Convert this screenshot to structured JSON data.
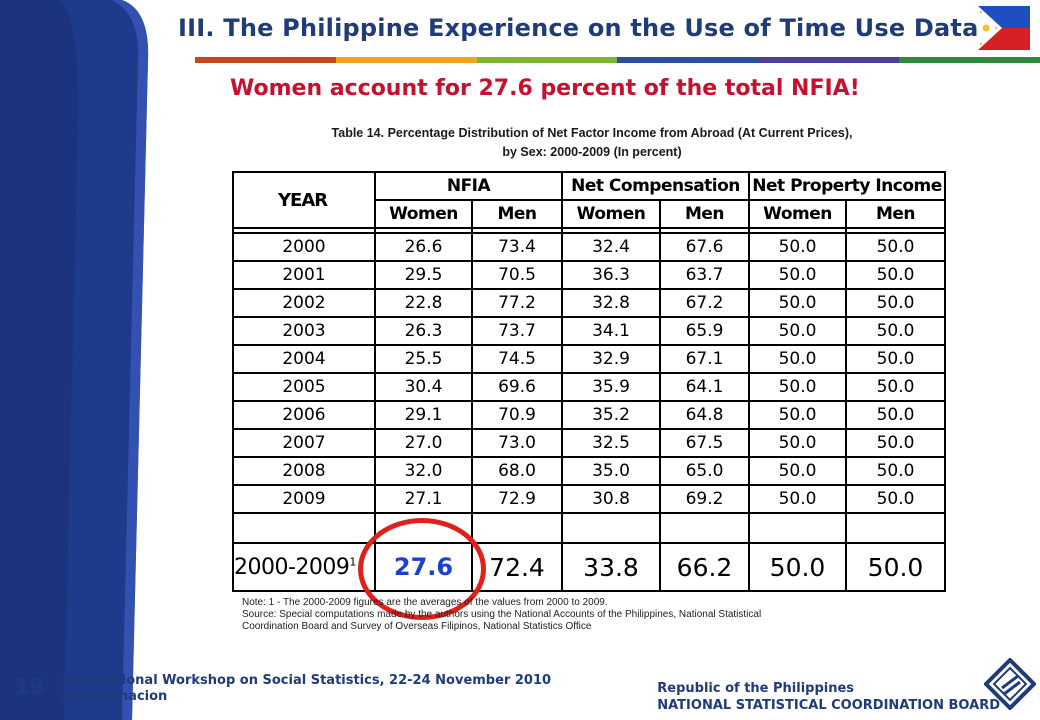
{
  "header": {
    "title": "III. The Philippine Experience on the Use of Time Use Data",
    "flag": "philippine-flag-icon",
    "rule_colors": [
      "#c5481a",
      "#f2a21b",
      "#7ab534",
      "#2b4f9e",
      "#4a3f9b",
      "#2f8a3c"
    ]
  },
  "subtitle": "Women account for 27.6 percent of the total NFIA!",
  "caption": {
    "line1": "Table 14. Percentage Distribution  of Net Factor Income from Abroad (At Current Prices),",
    "line2": "by Sex: 2000-2009 (In percent)"
  },
  "table": {
    "year_header": "YEAR",
    "groups": [
      "NFIA",
      "Net Compensation",
      "Net Property Income"
    ],
    "sub_women": "Women",
    "sub_men": "Men",
    "rows": [
      [
        "2000",
        "26.6",
        "73.4",
        "32.4",
        "67.6",
        "50.0",
        "50.0"
      ],
      [
        "2001",
        "29.5",
        "70.5",
        "36.3",
        "63.7",
        "50.0",
        "50.0"
      ],
      [
        "2002",
        "22.8",
        "77.2",
        "32.8",
        "67.2",
        "50.0",
        "50.0"
      ],
      [
        "2003",
        "26.3",
        "73.7",
        "34.1",
        "65.9",
        "50.0",
        "50.0"
      ],
      [
        "2004",
        "25.5",
        "74.5",
        "32.9",
        "67.1",
        "50.0",
        "50.0"
      ],
      [
        "2005",
        "30.4",
        "69.6",
        "35.9",
        "64.1",
        "50.0",
        "50.0"
      ],
      [
        "2006",
        "29.1",
        "70.9",
        "35.2",
        "64.8",
        "50.0",
        "50.0"
      ],
      [
        "2007",
        "27.0",
        "73.0",
        "32.5",
        "67.5",
        "50.0",
        "50.0"
      ],
      [
        "2008",
        "32.0",
        "68.0",
        "35.0",
        "65.0",
        "50.0",
        "50.0"
      ],
      [
        "2009",
        "27.1",
        "72.9",
        "30.8",
        "69.2",
        "50.0",
        "50.0"
      ]
    ],
    "average": {
      "year": "2000-2009",
      "note_mark": "1",
      "values": [
        "27.6",
        "72.4",
        "33.8",
        "66.2",
        "50.0",
        "50.0"
      ]
    }
  },
  "note": {
    "line1": "Note:  1 - The 2000-2009 figures are the averages of the values from 2000 to 2009.",
    "line2": "Source:  Special computations made by the authors using the National Accounts of the Philippines, National Statistical",
    "line3": "Coordination Board and Survey of Overseas Filipinos, National Statistics Office"
  },
  "footer": {
    "slide_number": "19",
    "event": "International Workshop on Social Statistics, 22-24 November 2010",
    "author": "JOEncarnacion",
    "org_line1": "Republic of the Philippines",
    "org_line2": "NATIONAL STATISTICAL COORDINATION BOARD",
    "logo": "nscb-logo-icon"
  }
}
